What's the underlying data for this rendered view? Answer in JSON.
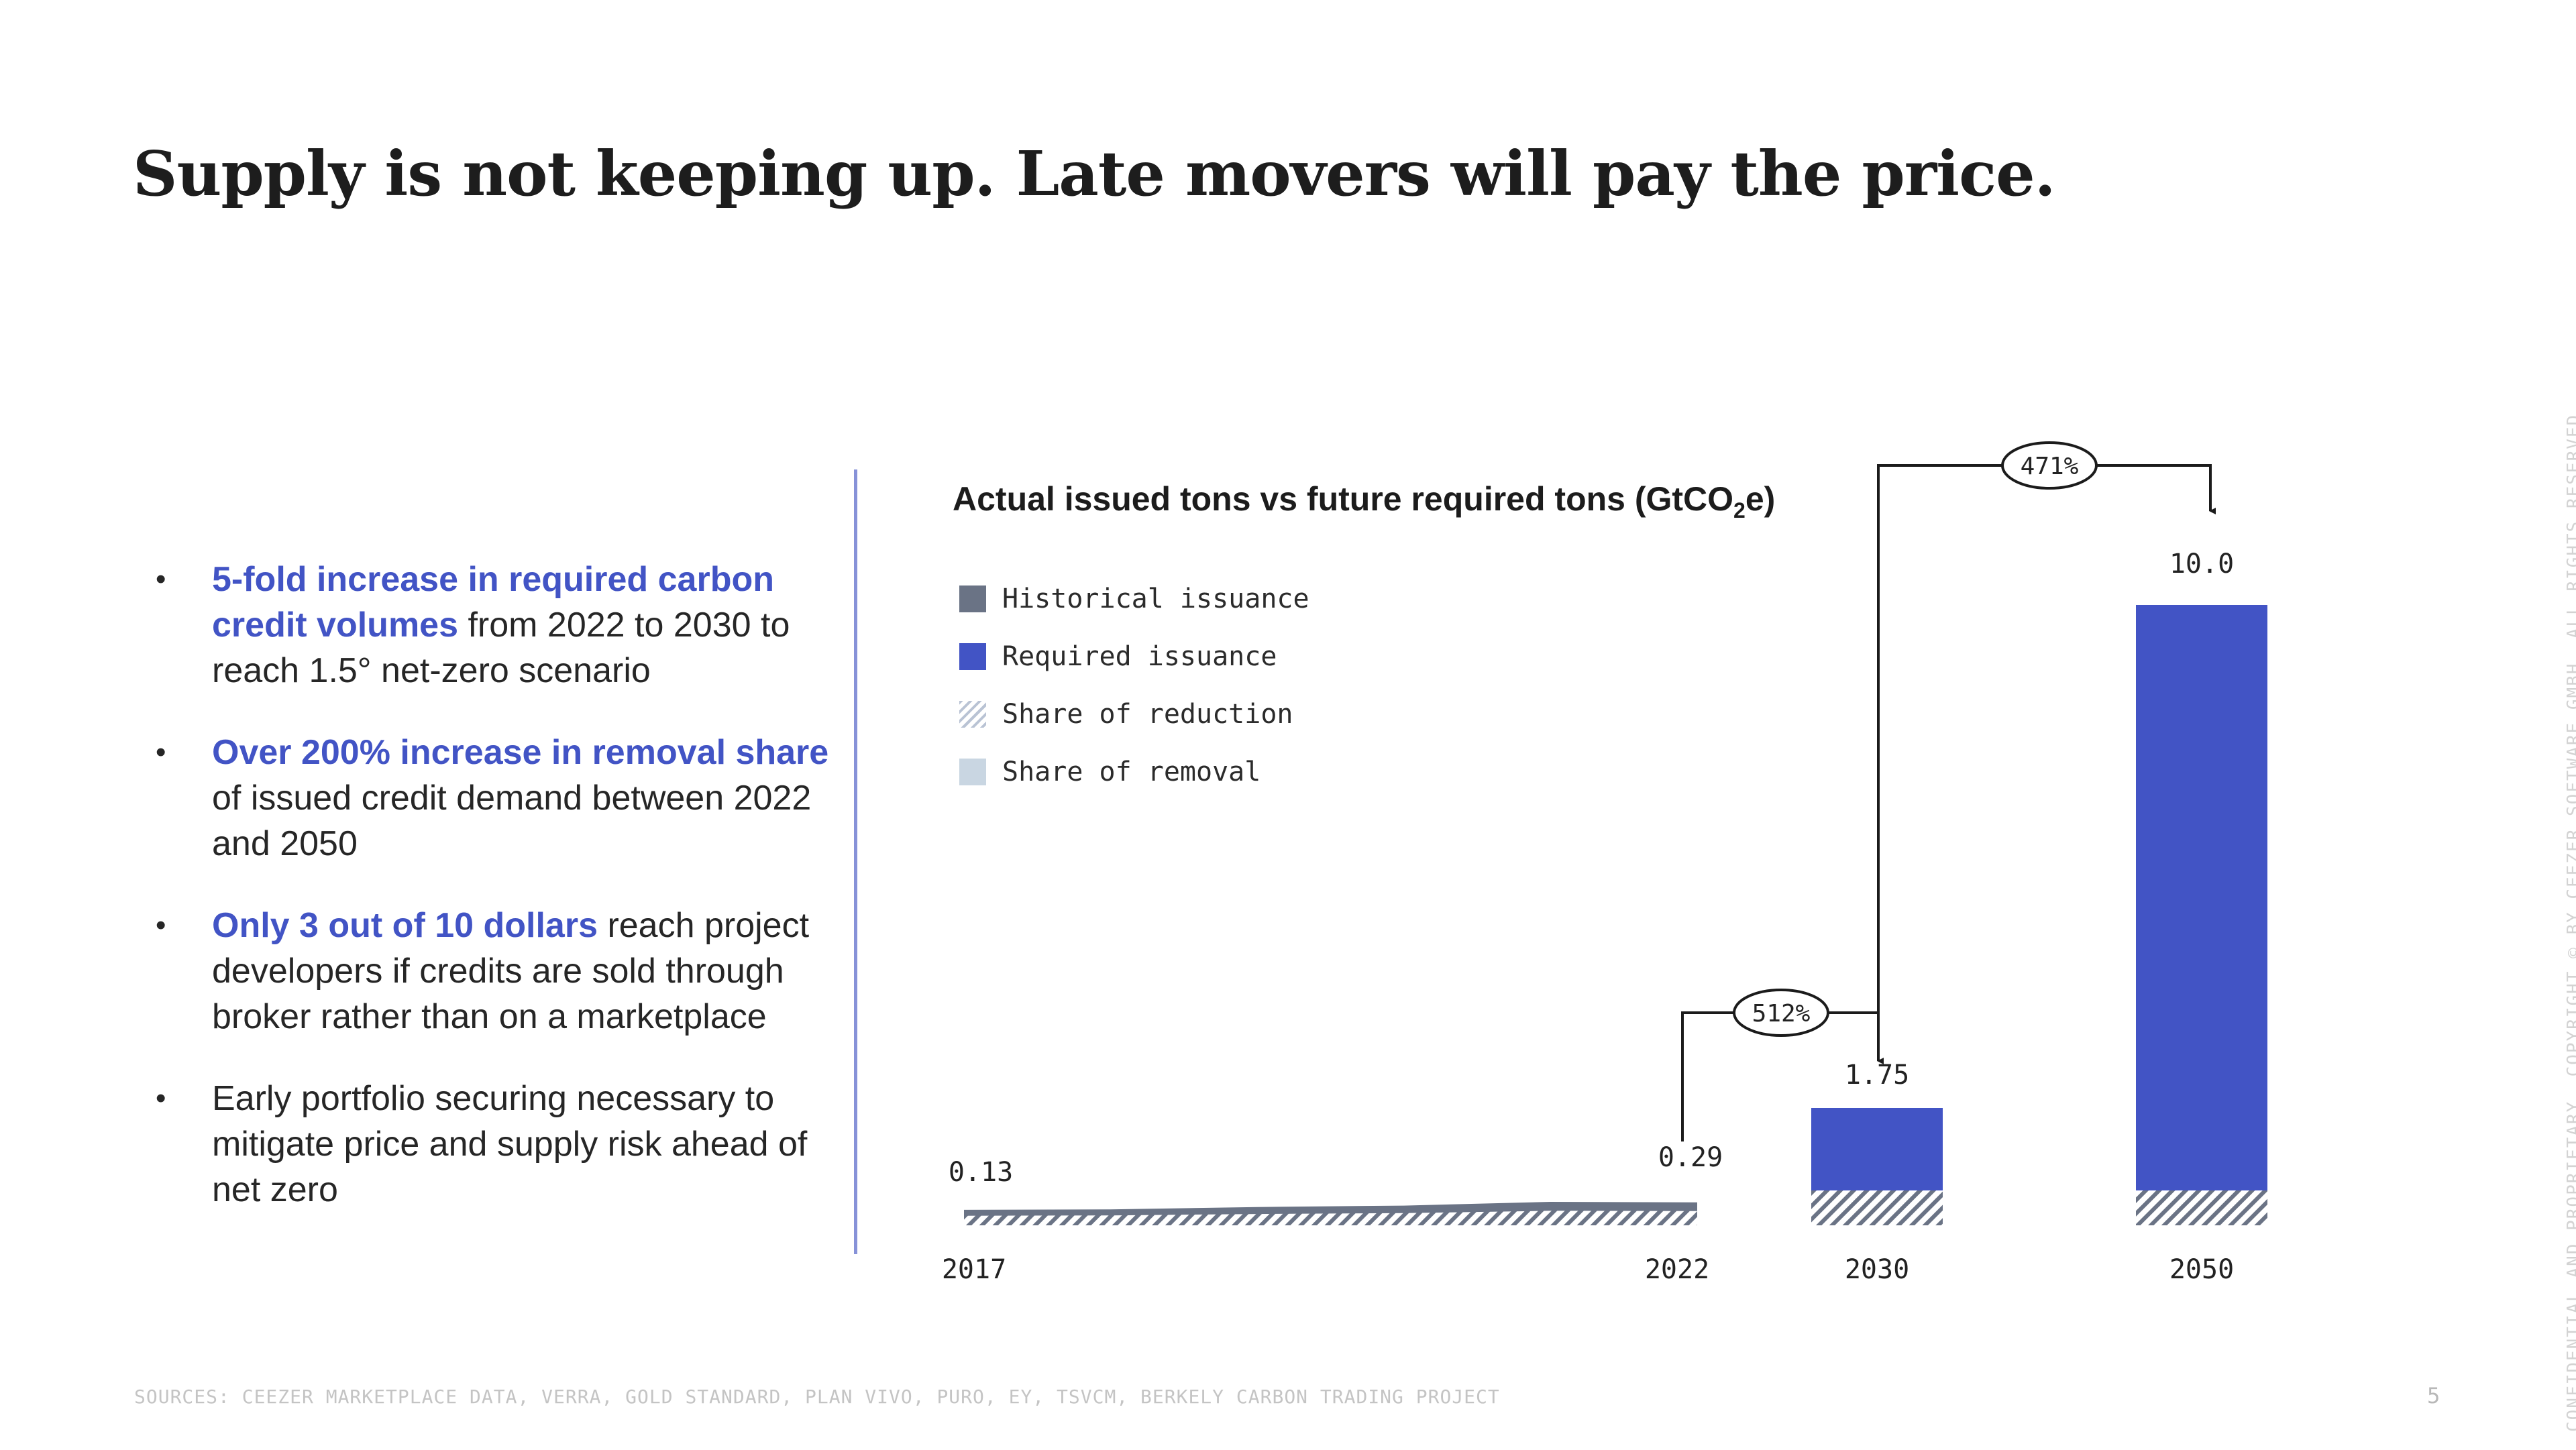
{
  "title": "Supply is not keeping up. Late movers will pay the price.",
  "bullets": [
    {
      "highlight": "5-fold increase in required carbon credit volumes",
      "text": " from 2022 to 2030 to reach 1.5° net-zero scenario"
    },
    {
      "highlight": "Over 200% increase in removal share",
      "text": " of issued credit demand between 2022 and 2050"
    },
    {
      "highlight": "Only 3 out of 10 dollars",
      "text": " reach project developers if credits are sold through broker rather than on a marketplace"
    },
    {
      "highlight": "",
      "text": "Early portfolio securing necessary to mitigate price and supply risk ahead of net zero"
    }
  ],
  "chart": {
    "title_main": "Actual issued tons vs future required tons (GtCO",
    "title_sub": "2",
    "title_end": "e)"
  },
  "legend": [
    {
      "label": "Historical issuance",
      "swatch": "solid-gray"
    },
    {
      "label": "Required issuance",
      "swatch": "solid-blue"
    },
    {
      "label": "Share of reduction",
      "swatch": "hatched"
    },
    {
      "label": "Share of removal",
      "swatch": "light-blue"
    }
  ],
  "colors": {
    "historical": "#6a7385",
    "required": "#4254c5",
    "hatch": "#6a7385",
    "removal": "#c9d6e2",
    "highlight": "#4254c5"
  },
  "chart_data": {
    "type": "bar",
    "unit": "GtCO2e",
    "ylim": [
      0,
      10
    ],
    "historical": {
      "x": [
        2017,
        2018,
        2019,
        2020,
        2021,
        2022
      ],
      "values": [
        0.13,
        0.14,
        0.19,
        0.22,
        0.3,
        0.29
      ]
    },
    "required": [
      {
        "year": "2030",
        "value": 1.75,
        "reduction_share": 0.33
      },
      {
        "year": "2050",
        "value": 10.0,
        "reduction_share": 0.05
      }
    ],
    "data_labels": {
      "2017": "0.13",
      "2022": "0.29",
      "2030": "1.75",
      "2050": "10.0"
    },
    "x_tick_labels": [
      "2017",
      "2022",
      "2030",
      "2050"
    ],
    "annotations": [
      {
        "from": "2022",
        "to": "2030",
        "label": "512%"
      },
      {
        "from": "2030",
        "to": "2050",
        "label": "471%"
      }
    ]
  },
  "footer": {
    "sources": "SOURCES: CEEZER MARKETPLACE DATA, VERRA, GOLD STANDARD, PLAN VIVO, PURO, EY, TSVCM, BERKELY CARBON TRADING PROJECT",
    "page_number": "5",
    "copyright": "CONFIDENTIAL AND PROPRIETARY. COPYRIGHT © BY CEEZER SOFTWARE GMBH. ALL RIGHTS RESERVED"
  }
}
